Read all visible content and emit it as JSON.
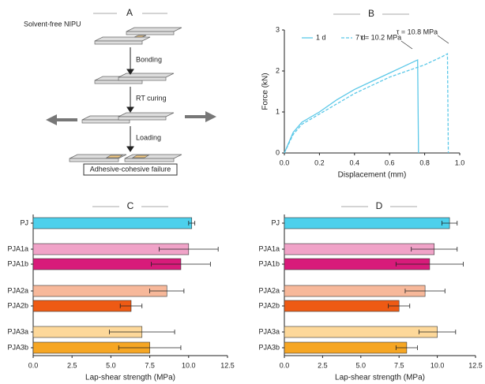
{
  "diagram": {
    "title": "A",
    "labels": [
      "Solvent-free NIPU",
      "Bonding",
      "RT curing",
      "Loading",
      "Adhesive-cohesive failure"
    ]
  },
  "chart_data": [
    {
      "type": "line",
      "title": "B",
      "xlabel": "Displacement (mm)",
      "ylabel": "Force (kN)",
      "xlim": [
        0,
        1
      ],
      "xticks": [
        {
          "value": 0,
          "label": "0.0"
        },
        0.2,
        0.4,
        0.6,
        0.8,
        {
          "value": 1,
          "label": "1.0"
        }
      ],
      "ylim": [
        0,
        3
      ],
      "yticks": [
        0,
        1,
        2,
        3
      ],
      "legend": "upper left",
      "annotations": [
        "τ = 10.2 MPa",
        "τ = 10.8 MPa"
      ],
      "series": [
        {
          "name": "1 d",
          "color": "#5bc8e8",
          "linestyle": "solid",
          "x": [
            0,
            0.05,
            0.1,
            0.2,
            0.3,
            0.4,
            0.5,
            0.6,
            0.7,
            0.76,
            0.765
          ],
          "values": [
            0,
            0.5,
            0.75,
            1.0,
            1.3,
            1.55,
            1.75,
            1.95,
            2.15,
            2.27,
            0
          ]
        },
        {
          "name": "7 d",
          "color": "#5bc8e8",
          "linestyle": "dashed",
          "x": [
            0,
            0.05,
            0.1,
            0.2,
            0.3,
            0.4,
            0.5,
            0.6,
            0.7,
            0.8,
            0.9,
            0.93,
            0.935
          ],
          "values": [
            0,
            0.45,
            0.7,
            0.95,
            1.2,
            1.45,
            1.65,
            1.85,
            2.0,
            2.15,
            2.35,
            2.42,
            0
          ]
        }
      ]
    },
    {
      "type": "hbar",
      "title": "C",
      "xlabel": "Lap-shear strength (MPa)",
      "xlim": [
        0,
        12.5
      ],
      "xticks": [
        {
          "value": 0,
          "label": "0.0"
        },
        2.5,
        {
          "value": 5,
          "label": "5.0"
        },
        7.5,
        {
          "value": 10,
          "label": "10.0"
        },
        12.5
      ],
      "categories": [
        "PJ",
        "PJA1a",
        "PJA1b",
        "PJA2a",
        "PJA2b",
        "PJA3a",
        "PJA3b"
      ],
      "values": [
        10.2,
        10.0,
        9.5,
        8.6,
        6.3,
        7.0,
        7.5
      ],
      "errors": [
        0.2,
        1.9,
        1.9,
        1.1,
        0.7,
        2.1,
        2.0
      ],
      "colors": [
        "#4dd0ec",
        "#f0a3c8",
        "#d81b7a",
        "#f7b89a",
        "#ee5a14",
        "#fdd89a",
        "#f6a623"
      ]
    },
    {
      "type": "hbar",
      "title": "D",
      "xlabel": "Lap-shear strength (MPa)",
      "xlim": [
        0,
        12.5
      ],
      "xticks": [
        {
          "value": 0,
          "label": "0.0"
        },
        2.5,
        {
          "value": 5,
          "label": "5.0"
        },
        7.5,
        {
          "value": 10,
          "label": "10.0"
        },
        12.5
      ],
      "categories": [
        "PJ",
        "PJA1a",
        "PJA1b",
        "PJA2a",
        "PJA2b",
        "PJA3a",
        "PJA3b"
      ],
      "values": [
        10.8,
        9.8,
        9.5,
        9.2,
        7.5,
        10.0,
        8.0
      ],
      "errors": [
        0.5,
        1.5,
        2.2,
        1.3,
        0.7,
        1.2,
        0.7
      ],
      "colors": [
        "#4dd0ec",
        "#f0a3c8",
        "#d81b7a",
        "#f7b89a",
        "#ee5a14",
        "#fdd89a",
        "#f6a623"
      ]
    }
  ]
}
